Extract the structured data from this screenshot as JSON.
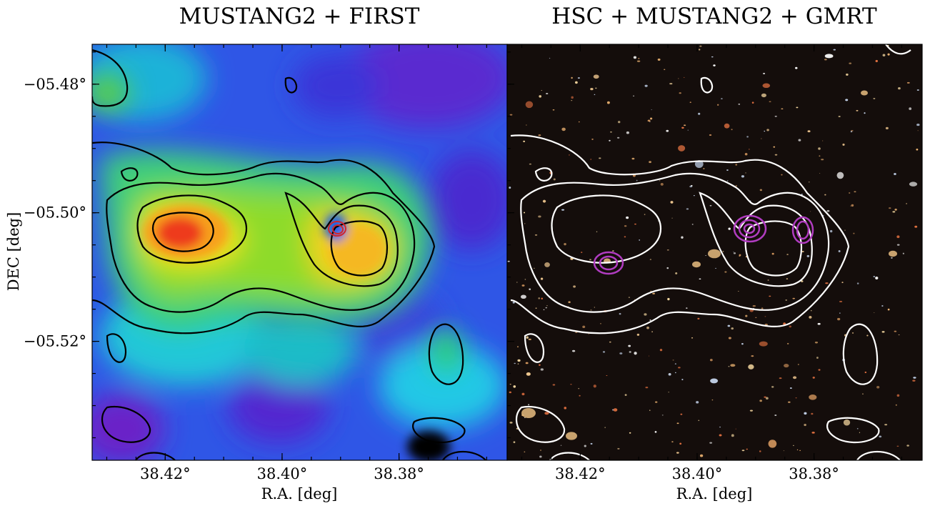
{
  "figure": {
    "panels": [
      {
        "id": "left",
        "title": "MUSTANG2 + FIRST",
        "background": "rainbow SZ map",
        "contour_color": "#000000",
        "radio_contour_color": "#d0262c"
      },
      {
        "id": "right",
        "title": "HSC + MUSTANG2 + GMRT",
        "background": "optical image",
        "contour_color": "#ffffff",
        "radio_contour_color": "#b03cc0"
      }
    ],
    "ylabel": "DEC [deg]",
    "xlabel": "R.A. [deg]"
  },
  "chart_data": {
    "type": "heatmap",
    "title": [
      "MUSTANG2 + FIRST",
      "HSC + MUSTANG2 + GMRT"
    ],
    "xlabel": "R.A. [deg]",
    "ylabel": "DEC [deg]",
    "x_ticks": [
      {
        "value": 38.42,
        "label": "38.42°"
      },
      {
        "value": 38.4,
        "label": "38.40°"
      },
      {
        "value": 38.38,
        "label": "38.38°"
      }
    ],
    "y_ticks": [
      {
        "value": -5.48,
        "label": "−05.48°"
      },
      {
        "value": -5.5,
        "label": "−05.50°"
      },
      {
        "value": -5.52,
        "label": "−05.52°"
      }
    ],
    "xlim": [
      38.4325,
      38.3615
    ],
    "ylim": [
      -5.5385,
      -5.4738
    ],
    "peaks": [
      {
        "name": "SZ peak west",
        "ra": 38.4165,
        "dec": -5.5026
      },
      {
        "name": "SZ peak east",
        "ra": 38.3897,
        "dec": -5.5066
      }
    ],
    "radio_sources": [
      {
        "panel": "left",
        "ra": 38.3925,
        "dec": -5.5018
      },
      {
        "panel": "right",
        "ra": 38.3926,
        "dec": -5.502
      },
      {
        "panel": "right",
        "ra": 38.3836,
        "dec": -5.502
      },
      {
        "panel": "right",
        "ra": 38.4143,
        "dec": -5.5077
      }
    ]
  }
}
